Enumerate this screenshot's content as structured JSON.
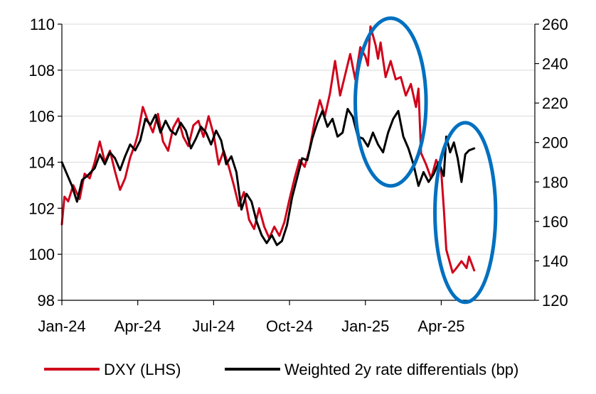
{
  "chart_data": {
    "type": "line",
    "title": "",
    "xlabel": "",
    "ylabel_left": "",
    "ylabel_right": "",
    "x_ticks": [
      "Jan-24",
      "Apr-24",
      "Jul-24",
      "Oct-24",
      "Jan-25",
      "Apr-25"
    ],
    "x_tick_months": [
      0,
      3,
      6,
      9,
      12,
      15
    ],
    "ylim_left": [
      98,
      110
    ],
    "yticks_left": [
      "98",
      "100",
      "102",
      "104",
      "106",
      "108",
      "110"
    ],
    "ylim_right": [
      120,
      260
    ],
    "yticks_right": [
      "120",
      "140",
      "160",
      "180",
      "200",
      "220",
      "240",
      "260"
    ],
    "grid": "horizontal",
    "legend_position": "bottom",
    "series": [
      {
        "name": "DXY (LHS)",
        "axis": "left",
        "color": "#d0021b",
        "x_months": [
          0,
          0.1,
          0.25,
          0.45,
          0.7,
          0.9,
          1.1,
          1.3,
          1.5,
          1.7,
          1.9,
          2.1,
          2.3,
          2.5,
          2.7,
          2.9,
          3.0,
          3.2,
          3.4,
          3.6,
          3.8,
          4.0,
          4.2,
          4.4,
          4.6,
          4.8,
          5.0,
          5.2,
          5.4,
          5.6,
          5.8,
          6.0,
          6.2,
          6.4,
          6.6,
          6.8,
          7.0,
          7.2,
          7.4,
          7.6,
          7.8,
          8.0,
          8.2,
          8.4,
          8.6,
          8.8,
          9.0,
          9.2,
          9.4,
          9.6,
          9.8,
          10.0,
          10.2,
          10.4,
          10.6,
          10.8,
          11.0,
          11.2,
          11.4,
          11.6,
          11.8,
          12.0,
          12.1,
          12.2,
          12.4,
          12.5,
          12.6,
          12.8,
          13.0,
          13.2,
          13.4,
          13.6,
          13.8,
          14.0,
          14.1,
          14.2,
          14.4,
          14.6,
          14.8,
          15.0,
          15.1,
          15.2,
          15.3,
          15.45,
          15.6,
          15.8,
          16.0,
          16.1,
          16.3
        ],
        "values": [
          101.3,
          102.5,
          102.3,
          103.0,
          102.4,
          103.5,
          103.3,
          104.0,
          104.9,
          104.0,
          104.5,
          103.6,
          102.8,
          103.3,
          104.2,
          104.8,
          105.2,
          106.4,
          105.8,
          105.3,
          106.1,
          104.9,
          104.5,
          105.5,
          105.9,
          105.1,
          104.7,
          105.6,
          105.8,
          105.1,
          106.0,
          105.2,
          103.9,
          104.5,
          103.8,
          103.0,
          102.1,
          102.7,
          101.5,
          101.1,
          102.0,
          101.2,
          100.7,
          101.2,
          100.8,
          101.4,
          102.4,
          103.3,
          104.1,
          103.8,
          104.6,
          105.8,
          106.7,
          106.0,
          107.0,
          108.4,
          106.9,
          107.8,
          108.7,
          107.6,
          109.0,
          108.6,
          108.2,
          109.9,
          109.1,
          108.5,
          109.2,
          107.7,
          108.4,
          107.6,
          107.7,
          106.9,
          107.4,
          106.4,
          107.2,
          104.4,
          103.9,
          103.3,
          104.1,
          103.6,
          102.0,
          100.2,
          99.8,
          99.2,
          99.4,
          99.7,
          99.4,
          99.9,
          99.3
        ]
      },
      {
        "name": "Weighted 2y rate differentials (bp)",
        "axis": "right",
        "color": "#000000",
        "x_months": [
          0,
          0.2,
          0.4,
          0.6,
          0.8,
          1.0,
          1.3,
          1.5,
          1.7,
          1.9,
          2.1,
          2.3,
          2.5,
          2.7,
          2.9,
          3.1,
          3.3,
          3.5,
          3.7,
          3.9,
          4.1,
          4.3,
          4.5,
          4.7,
          4.9,
          5.1,
          5.3,
          5.5,
          5.7,
          5.9,
          6.1,
          6.3,
          6.5,
          6.7,
          6.9,
          7.1,
          7.3,
          7.5,
          7.7,
          7.9,
          8.1,
          8.3,
          8.5,
          8.7,
          8.9,
          9.1,
          9.3,
          9.5,
          9.7,
          9.9,
          10.1,
          10.3,
          10.5,
          10.7,
          10.9,
          11.1,
          11.3,
          11.5,
          11.7,
          11.9,
          12.1,
          12.3,
          12.5,
          12.7,
          12.9,
          13.1,
          13.3,
          13.5,
          13.7,
          13.9,
          14.1,
          14.3,
          14.5,
          14.7,
          14.9,
          15.1,
          15.2,
          15.35,
          15.5,
          15.65,
          15.8,
          15.95,
          16.1,
          16.3
        ],
        "values": [
          190,
          184,
          178,
          170,
          181,
          183,
          187,
          194,
          189,
          195,
          192,
          186,
          193,
          199,
          196,
          201,
          212,
          209,
          214,
          205,
          211,
          206,
          204,
          210,
          206,
          197,
          202,
          208,
          205,
          199,
          206,
          201,
          189,
          193,
          185,
          166,
          174,
          170,
          160,
          153,
          149,
          153,
          148,
          150,
          158,
          172,
          182,
          192,
          191,
          202,
          210,
          216,
          208,
          212,
          203,
          205,
          217,
          213,
          203,
          202,
          198,
          205,
          199,
          195,
          205,
          212,
          216,
          203,
          197,
          189,
          178,
          185,
          180,
          184,
          190,
          183,
          203,
          195,
          200,
          192,
          180,
          194,
          196,
          197
        ]
      }
    ],
    "annotations": [
      {
        "shape": "ellipse",
        "color": "#0070c0",
        "x_months": [
          11.6,
          14.4
        ],
        "y_right": [
          178,
          263
        ]
      },
      {
        "shape": "ellipse",
        "color": "#0070c0",
        "x_months": [
          14.75,
          17.15
        ],
        "y_right": [
          119,
          210
        ]
      }
    ]
  }
}
